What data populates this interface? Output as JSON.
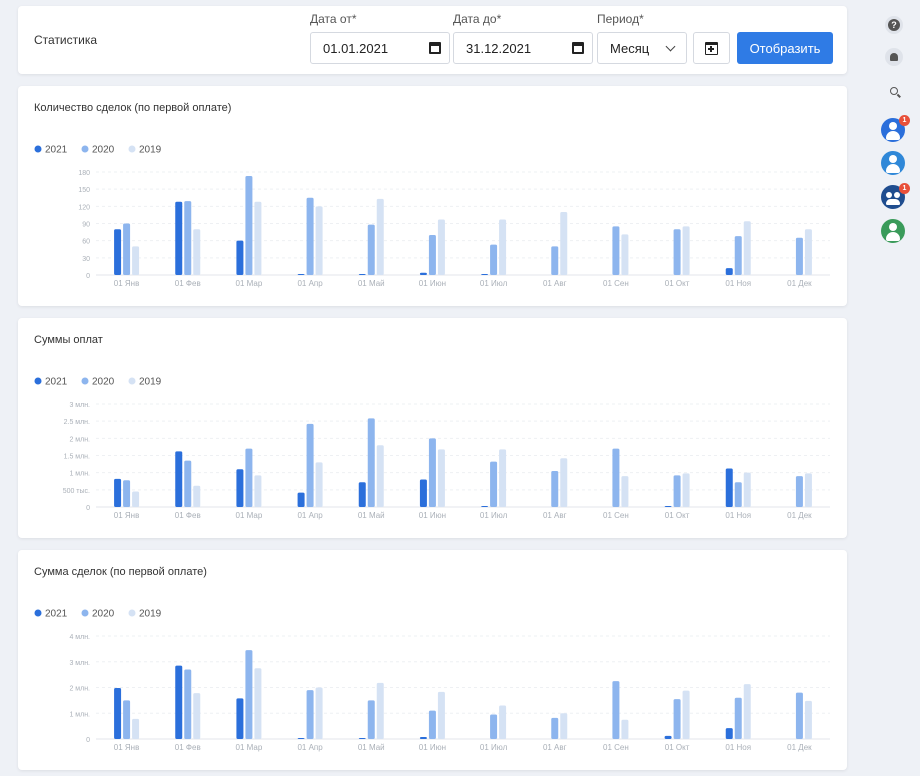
{
  "filter": {
    "title": "Статистика",
    "date_from_label": "Дата от*",
    "date_from_value": "01.01.2021",
    "date_to_label": "Дата до*",
    "date_to_value": "31.12.2021",
    "period_label": "Период*",
    "period_value": "Месяц",
    "show_button": "Отобразить"
  },
  "colors": {
    "y2021": "#2b6fdb",
    "y2020": "#8db5ee",
    "y2019": "#d5e2f4",
    "accent": "#2f7be5"
  },
  "right_rail": {
    "icons": [
      "help-icon",
      "bell-icon",
      "search-icon",
      "user-avatar",
      "user-avatar",
      "group-avatar",
      "user-avatar"
    ],
    "badges": [
      "1",
      "1"
    ]
  },
  "chart_data": [
    {
      "type": "bar",
      "title": "Количество сделок (по первой оплате)",
      "categories": [
        "01 Янв",
        "01 Фев",
        "01 Мар",
        "01 Апр",
        "01 Май",
        "01 Июн",
        "01 Июл",
        "01 Авг",
        "01 Сен",
        "01 Окт",
        "01 Ноя",
        "01 Дек"
      ],
      "yticks": [
        "180",
        "150",
        "120",
        "90",
        "60",
        "30",
        "0"
      ],
      "ylim": [
        0,
        180
      ],
      "legend": [
        "2021",
        "2020",
        "2019"
      ],
      "series": [
        {
          "name": "2021",
          "values": [
            80,
            128,
            60,
            1,
            1,
            4,
            1,
            0,
            0,
            0,
            12,
            0
          ]
        },
        {
          "name": "2020",
          "values": [
            90,
            129,
            173,
            135,
            88,
            70,
            53,
            50,
            85,
            80,
            68,
            65
          ]
        },
        {
          "name": "2019",
          "values": [
            50,
            80,
            128,
            120,
            133,
            97,
            97,
            110,
            71,
            85,
            94,
            80
          ]
        }
      ]
    },
    {
      "type": "bar",
      "title": "Суммы оплат",
      "categories": [
        "01 Янв",
        "01 Фев",
        "01 Мар",
        "01 Апр",
        "01 Май",
        "01 Июн",
        "01 Июл",
        "01 Авг",
        "01 Сен",
        "01 Окт",
        "01 Ноя",
        "01 Дек"
      ],
      "yticks": [
        "3 млн.",
        "2.5 млн.",
        "2 млн.",
        "1.5 млн.",
        "1 млн.",
        "500 тыс.",
        "0"
      ],
      "ylim": [
        0,
        3000000
      ],
      "legend": [
        "2021",
        "2020",
        "2019"
      ],
      "series": [
        {
          "name": "2021",
          "values": [
            820000,
            1620000,
            1100000,
            420000,
            720000,
            800000,
            30000,
            0,
            0,
            10000,
            1120000,
            0
          ]
        },
        {
          "name": "2020",
          "values": [
            780000,
            1350000,
            1700000,
            2420000,
            2580000,
            2000000,
            1320000,
            1050000,
            1700000,
            920000,
            720000,
            900000
          ]
        },
        {
          "name": "2019",
          "values": [
            450000,
            620000,
            920000,
            1300000,
            1800000,
            1680000,
            1680000,
            1420000,
            900000,
            980000,
            1000000,
            980000
          ]
        }
      ]
    },
    {
      "type": "bar",
      "title": "Сумма сделок (по первой оплате)",
      "categories": [
        "01 Янв",
        "01 Фев",
        "01 Мар",
        "01 Апр",
        "01 Май",
        "01 Июн",
        "01 Июл",
        "01 Авг",
        "01 Сен",
        "01 Окт",
        "01 Ноя",
        "01 Дек"
      ],
      "yticks": [
        "4 млн.",
        "3 млн.",
        "2 млн.",
        "1 млн.",
        "0"
      ],
      "ylim": [
        0,
        4000000
      ],
      "legend": [
        "2021",
        "2020",
        "2019"
      ],
      "series": [
        {
          "name": "2021",
          "values": [
            1980000,
            2850000,
            1580000,
            20000,
            30000,
            80000,
            0,
            0,
            0,
            120000,
            420000,
            0
          ]
        },
        {
          "name": "2020",
          "values": [
            1500000,
            2700000,
            3450000,
            1900000,
            1500000,
            1100000,
            950000,
            820000,
            2250000,
            1550000,
            1600000,
            1800000
          ]
        },
        {
          "name": "2019",
          "values": [
            780000,
            1780000,
            2750000,
            2000000,
            2180000,
            1830000,
            1300000,
            1000000,
            750000,
            1880000,
            2130000,
            1480000
          ]
        }
      ]
    }
  ]
}
